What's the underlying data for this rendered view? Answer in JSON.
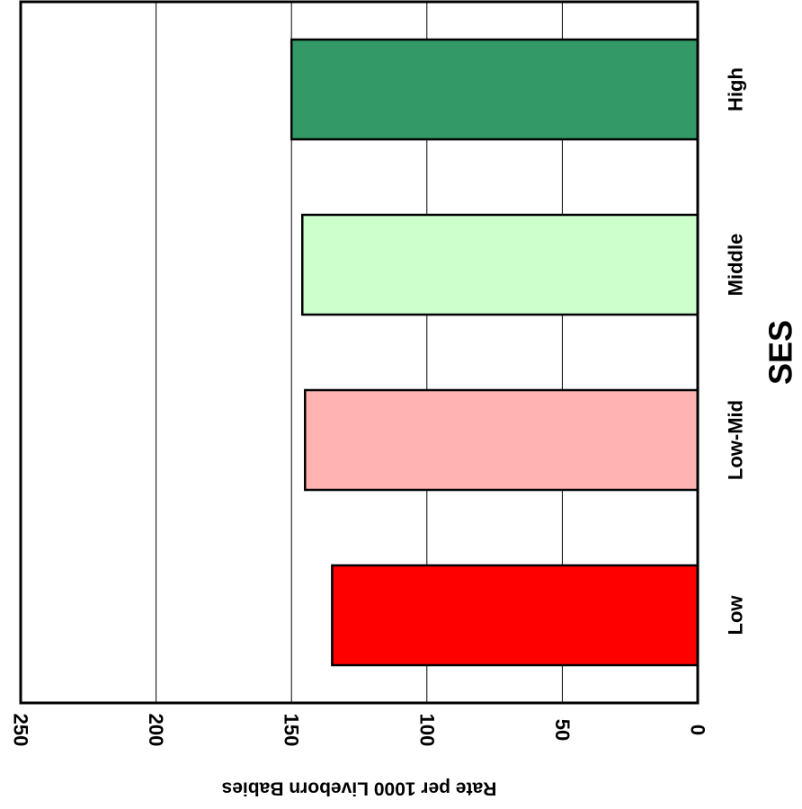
{
  "chart_data": {
    "type": "bar",
    "orientation": "horizontal",
    "categories": [
      "Low",
      "Low-Mid",
      "Middle",
      "High"
    ],
    "values": [
      135,
      145,
      146,
      150
    ],
    "colors": [
      "#ff0000",
      "#ffb3b3",
      "#ccffcc",
      "#339966"
    ],
    "xlabel": "SES",
    "ylabel": "Rate per 1000 Liveborn Babies",
    "ylim": [
      0,
      250
    ],
    "yticks": [
      0,
      50,
      100,
      150,
      200,
      250
    ],
    "grid": true,
    "legend": "none"
  }
}
